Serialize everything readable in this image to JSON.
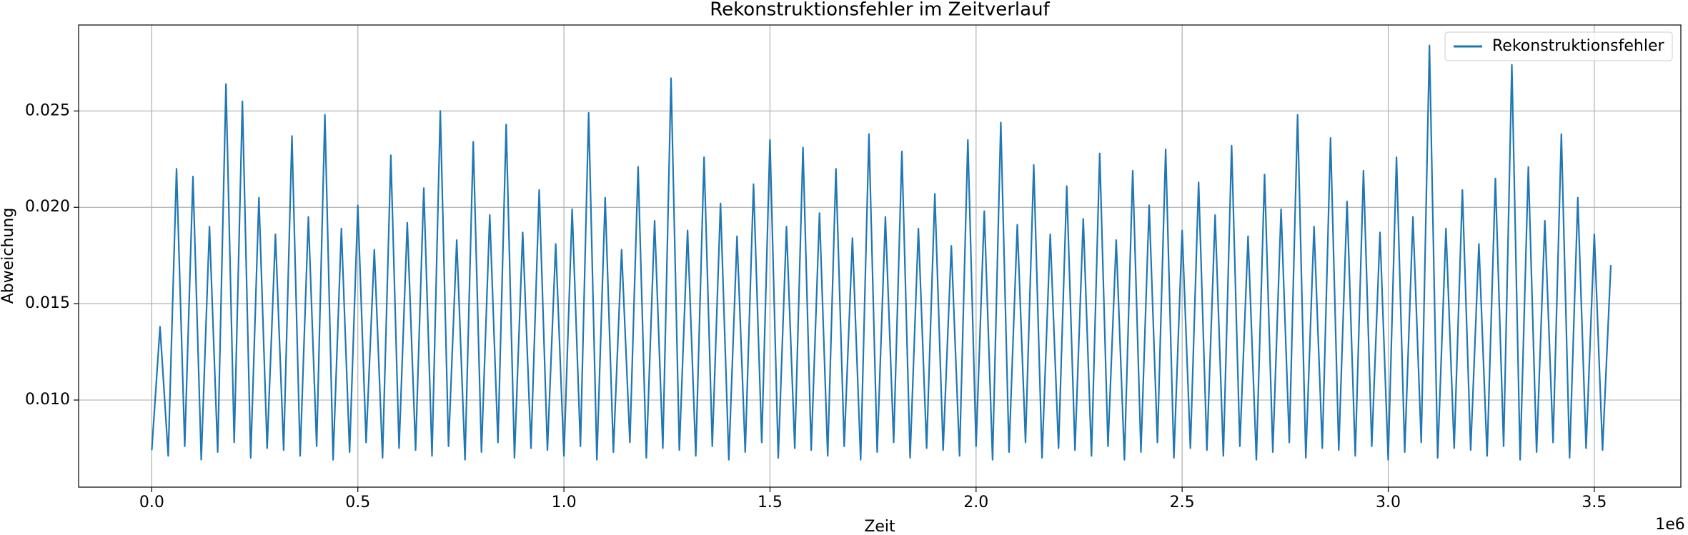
{
  "chart_data": {
    "type": "line",
    "title": "Rekonstruktionsfehler im Zeitverlauf",
    "x_label": "Zeit",
    "y_label": "Abweichung",
    "x_offset_label": "1e6",
    "xlim": [
      -177500,
      3710000
    ],
    "ylim": [
      0.00548,
      0.02946
    ],
    "xticks": [
      {
        "value": 0,
        "label": "0.0"
      },
      {
        "value": 500000,
        "label": "0.5"
      },
      {
        "value": 1000000,
        "label": "1.0"
      },
      {
        "value": 1500000,
        "label": "1.5"
      },
      {
        "value": 2000000,
        "label": "2.0"
      },
      {
        "value": 2500000,
        "label": "2.5"
      },
      {
        "value": 3000000,
        "label": "3.0"
      },
      {
        "value": 3500000,
        "label": "3.5"
      }
    ],
    "yticks": [
      {
        "value": 0.01,
        "label": "0.010"
      },
      {
        "value": 0.015,
        "label": "0.015"
      },
      {
        "value": 0.02,
        "label": "0.020"
      },
      {
        "value": 0.025,
        "label": "0.025"
      }
    ],
    "grid": true,
    "legend": "upper right",
    "x": [
      0,
      20000,
      40000,
      60000,
      80000,
      100000,
      120000,
      140000,
      160000,
      180000,
      200000,
      220000,
      240000,
      260000,
      280000,
      300000,
      320000,
      340000,
      360000,
      380000,
      400000,
      420000,
      440000,
      460000,
      480000,
      500000,
      520000,
      540000,
      560000,
      580000,
      600000,
      620000,
      640000,
      660000,
      680000,
      700000,
      720000,
      740000,
      760000,
      780000,
      800000,
      820000,
      840000,
      860000,
      880000,
      900000,
      920000,
      940000,
      960000,
      980000,
      1000000,
      1020000,
      1040000,
      1060000,
      1080000,
      1100000,
      1120000,
      1140000,
      1160000,
      1180000,
      1200000,
      1220000,
      1240000,
      1260000,
      1280000,
      1300000,
      1320000,
      1340000,
      1360000,
      1380000,
      1400000,
      1420000,
      1440000,
      1460000,
      1480000,
      1500000,
      1520000,
      1540000,
      1560000,
      1580000,
      1600000,
      1620000,
      1640000,
      1660000,
      1680000,
      1700000,
      1720000,
      1740000,
      1760000,
      1780000,
      1800000,
      1820000,
      1840000,
      1860000,
      1880000,
      1900000,
      1920000,
      1940000,
      1960000,
      1980000,
      2000000,
      2020000,
      2040000,
      2060000,
      2080000,
      2100000,
      2120000,
      2140000,
      2160000,
      2180000,
      2200000,
      2220000,
      2240000,
      2260000,
      2280000,
      2300000,
      2320000,
      2340000,
      2360000,
      2380000,
      2400000,
      2420000,
      2440000,
      2460000,
      2480000,
      2500000,
      2520000,
      2540000,
      2560000,
      2580000,
      2600000,
      2620000,
      2640000,
      2660000,
      2680000,
      2700000,
      2720000,
      2740000,
      2760000,
      2780000,
      2800000,
      2820000,
      2840000,
      2860000,
      2880000,
      2900000,
      2920000,
      2940000,
      2960000,
      2980000,
      3000000,
      3020000,
      3040000,
      3060000,
      3080000,
      3100000,
      3120000,
      3140000,
      3160000,
      3180000,
      3200000,
      3220000,
      3240000,
      3260000,
      3280000,
      3300000,
      3320000,
      3340000,
      3360000,
      3380000,
      3400000,
      3420000,
      3440000,
      3460000,
      3480000,
      3500000,
      3520000,
      3540000
    ],
    "series": [
      {
        "name": "Rekonstruktionsfehler",
        "color": "#1f77b4",
        "values": [
          0.0074,
          0.0138,
          0.0071,
          0.022,
          0.0076,
          0.0216,
          0.0069,
          0.019,
          0.0073,
          0.0264,
          0.0078,
          0.0255,
          0.007,
          0.0205,
          0.0075,
          0.0186,
          0.0074,
          0.0237,
          0.0071,
          0.0195,
          0.0076,
          0.0248,
          0.0069,
          0.0189,
          0.0073,
          0.0201,
          0.0078,
          0.0178,
          0.007,
          0.0227,
          0.0075,
          0.0192,
          0.0074,
          0.021,
          0.0071,
          0.025,
          0.0076,
          0.0183,
          0.0069,
          0.0234,
          0.0073,
          0.0196,
          0.0078,
          0.0243,
          0.007,
          0.0187,
          0.0075,
          0.0209,
          0.0074,
          0.0181,
          0.0071,
          0.0199,
          0.0076,
          0.0249,
          0.0069,
          0.0205,
          0.0073,
          0.0178,
          0.0078,
          0.0221,
          0.007,
          0.0193,
          0.0075,
          0.0267,
          0.0074,
          0.0188,
          0.0071,
          0.0226,
          0.0076,
          0.0202,
          0.0069,
          0.0185,
          0.0073,
          0.0212,
          0.0078,
          0.0235,
          0.007,
          0.019,
          0.0075,
          0.0231,
          0.0074,
          0.0197,
          0.0071,
          0.022,
          0.0076,
          0.0184,
          0.0069,
          0.0238,
          0.0073,
          0.0195,
          0.0078,
          0.0229,
          0.007,
          0.0189,
          0.0075,
          0.0207,
          0.0074,
          0.018,
          0.0071,
          0.0235,
          0.0076,
          0.0198,
          0.0069,
          0.0244,
          0.0073,
          0.0191,
          0.0078,
          0.0222,
          0.007,
          0.0186,
          0.0075,
          0.0211,
          0.0074,
          0.0194,
          0.0071,
          0.0228,
          0.0076,
          0.0183,
          0.0069,
          0.0219,
          0.0073,
          0.0201,
          0.0078,
          0.023,
          0.007,
          0.0188,
          0.0075,
          0.0213,
          0.0074,
          0.0196,
          0.0071,
          0.0232,
          0.0076,
          0.0185,
          0.0069,
          0.0217,
          0.0073,
          0.0199,
          0.0078,
          0.0248,
          0.007,
          0.019,
          0.0075,
          0.0236,
          0.0074,
          0.0203,
          0.0071,
          0.0219,
          0.0076,
          0.0187,
          0.0069,
          0.0226,
          0.0073,
          0.0195,
          0.0078,
          0.0284,
          0.007,
          0.0189,
          0.0075,
          0.0209,
          0.0074,
          0.0181,
          0.0071,
          0.0215,
          0.0076,
          0.0274,
          0.0069,
          0.0221,
          0.0073,
          0.0193,
          0.0078,
          0.0238,
          0.007,
          0.0205,
          0.0075,
          0.0186,
          0.0074,
          0.017
        ]
      }
    ]
  }
}
